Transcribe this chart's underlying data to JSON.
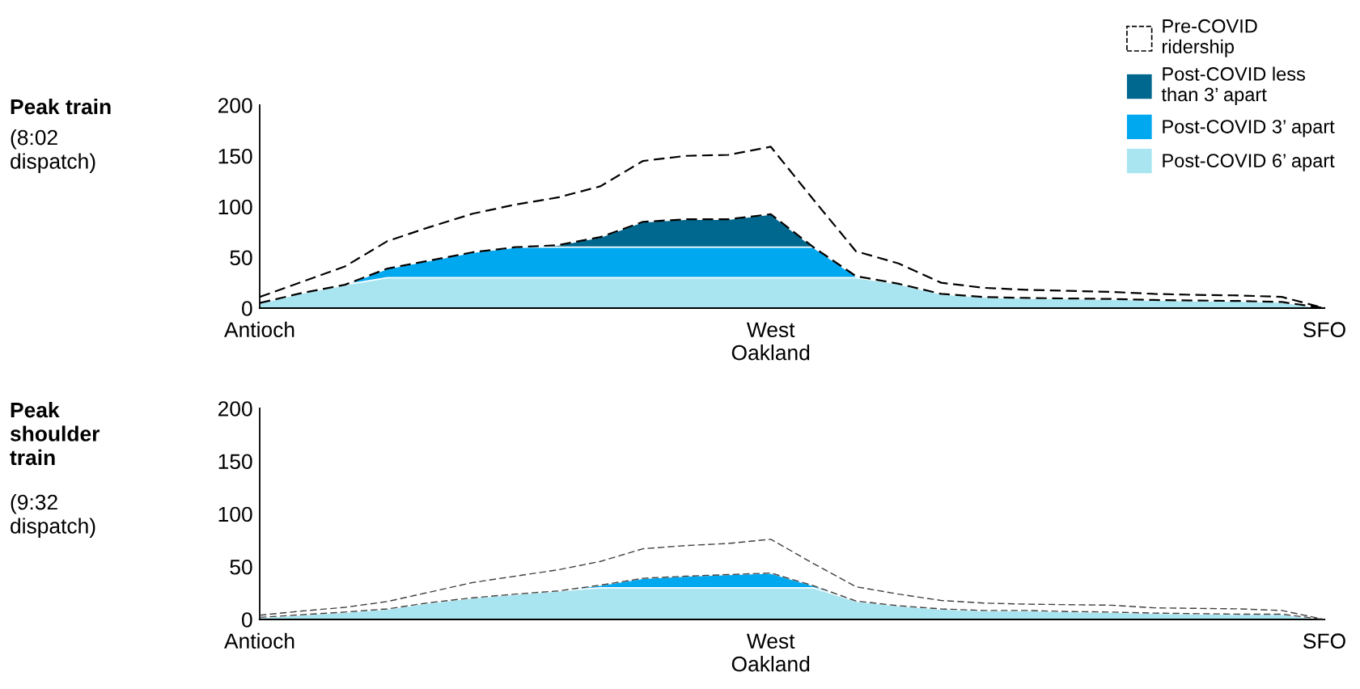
{
  "chart_data": [
    {
      "type": "area",
      "title": "Peak train",
      "subtitle": "(8:02 dispatch)",
      "stacked": true,
      "legend": "top right",
      "grid": false,
      "categories": [
        "Antioch",
        null,
        null,
        null,
        null,
        null,
        null,
        null,
        null,
        null,
        null,
        null,
        "West Oakland",
        null,
        null,
        null,
        null,
        null,
        null,
        null,
        null,
        null,
        null,
        null,
        null,
        "SFO"
      ],
      "ylim": [
        0,
        200
      ],
      "yticks": [
        0,
        50,
        100,
        150,
        200
      ],
      "series": [
        {
          "name": "Pre-COVID ridership",
          "type": "line",
          "line_style": "dashed",
          "color": "#000000",
          "values": [
            11,
            26,
            41,
            66,
            80,
            93,
            102,
            109,
            120,
            145,
            150,
            151,
            159,
            107,
            56,
            44,
            25,
            20,
            18,
            17,
            16,
            14,
            13,
            12.5,
            11,
            0
          ]
        },
        {
          "name": "Post-COVID 6’ apart",
          "color": "#a9e5f0",
          "values": [
            5,
            15,
            23,
            30,
            30,
            30,
            30,
            30,
            30,
            30,
            30,
            30,
            30,
            30,
            30,
            24,
            14,
            11,
            10,
            9.5,
            9,
            8,
            7.5,
            7,
            6,
            0
          ]
        },
        {
          "name": "Post-COVID 3’ apart",
          "color": "#00a8f0",
          "values": [
            0,
            0,
            0,
            9,
            17,
            25,
            30,
            30,
            30,
            30,
            30,
            30,
            30,
            30,
            1.5,
            0,
            0,
            0,
            0,
            0,
            0,
            0,
            0,
            0,
            0,
            0
          ]
        },
        {
          "name": "Post-COVID less than 3’ apart",
          "color": "#00688f",
          "values": [
            0,
            0,
            0,
            0,
            0,
            0,
            0,
            2,
            10,
            25,
            27.5,
            27.5,
            32.5,
            0,
            0,
            0,
            0,
            0,
            0,
            0,
            0,
            0,
            0,
            0,
            0,
            0
          ]
        }
      ]
    },
    {
      "type": "area",
      "title": "Peak shoulder train",
      "subtitle": "(9:32 dispatch)",
      "stacked": true,
      "grid": false,
      "categories": [
        "Antioch",
        null,
        null,
        null,
        null,
        null,
        null,
        null,
        null,
        null,
        null,
        null,
        "West Oakland",
        null,
        null,
        null,
        null,
        null,
        null,
        null,
        null,
        null,
        null,
        null,
        null,
        "SFO"
      ],
      "ylim": [
        0,
        200
      ],
      "yticks": [
        0,
        50,
        100,
        150,
        200
      ],
      "series": [
        {
          "type": "line",
          "line_style": "dashed",
          "color": "#404040",
          "values": [
            4,
            8,
            11.5,
            17,
            26,
            35,
            41,
            47,
            55,
            67,
            70,
            72,
            76,
            53,
            31,
            24,
            18,
            15.5,
            14.5,
            14,
            13.5,
            11,
            10.5,
            10,
            8.5,
            0
          ]
        },
        {
          "color": "#a9e5f0",
          "values": [
            2,
            4.5,
            7,
            10,
            16,
            20.5,
            24,
            27,
            30,
            30,
            30,
            30,
            30,
            30,
            17.5,
            13,
            10,
            8.5,
            8.5,
            7.5,
            7,
            6,
            5.5,
            5,
            5,
            0
          ]
        },
        {
          "color": "#00a8f0",
          "values": [
            0,
            0,
            0,
            0,
            0,
            0,
            0,
            0,
            2.5,
            9,
            11,
            12.5,
            14,
            2,
            0,
            0,
            0,
            0,
            0,
            0,
            0,
            0,
            0,
            0,
            0,
            0
          ]
        }
      ]
    }
  ]
}
